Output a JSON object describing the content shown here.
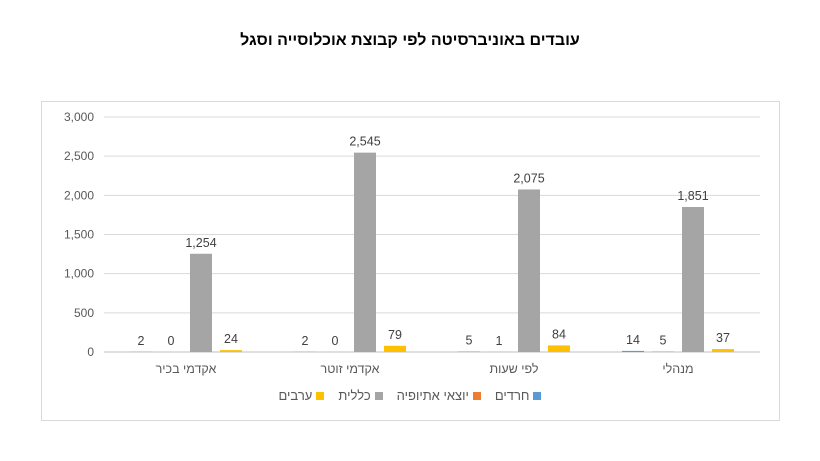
{
  "chart_data": {
    "type": "bar",
    "title": "עובדים באוניברסיטה לפי קבוצת אוכלוסייה וסגל",
    "xlabel": "",
    "ylabel": "",
    "ylim": [
      0,
      3000
    ],
    "yticks": [
      "0",
      "500",
      "1,000",
      "1,500",
      "2,000",
      "2,500",
      "3,000"
    ],
    "ytick_values": [
      0,
      500,
      1000,
      1500,
      2000,
      2500,
      3000
    ],
    "grid": true,
    "legend_position": "bottom",
    "categories": [
      "אקדמי בכיר",
      "אקדמי זוטר",
      "לפי שעות",
      "מנהלי"
    ],
    "series": [
      {
        "name": "חרדים",
        "color": "#5b9bd5",
        "values": [
          2,
          2,
          5,
          14
        ],
        "labels": [
          "2",
          "2",
          "5",
          "14"
        ]
      },
      {
        "name": "יוצאי אתיופיה",
        "color": "#ed7d31",
        "values": [
          0,
          0,
          1,
          5
        ],
        "labels": [
          "0",
          "0",
          "1",
          "5"
        ]
      },
      {
        "name": "כללית",
        "color": "#a5a5a5",
        "values": [
          1254,
          2545,
          2075,
          1851
        ],
        "labels": [
          "1,254",
          "2,545",
          "2,075",
          "1,851"
        ]
      },
      {
        "name": "ערבים",
        "color": "#ffc000",
        "values": [
          24,
          79,
          84,
          37
        ],
        "labels": [
          "24",
          "79",
          "84",
          "37"
        ]
      }
    ],
    "legend_order": [
      3,
      2,
      1,
      0
    ]
  }
}
